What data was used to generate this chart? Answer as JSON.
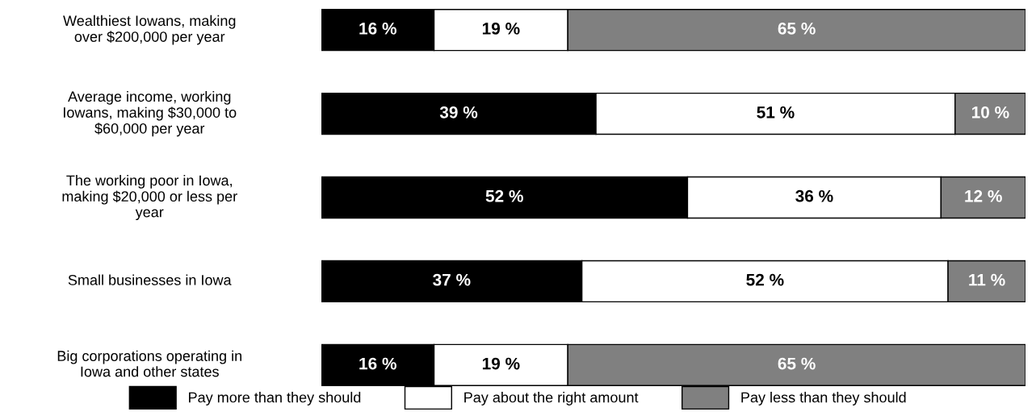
{
  "chart_data": {
    "type": "bar",
    "orientation": "horizontal",
    "stacked": true,
    "categories": [
      "Wealthiest Iowans, making\nover $200,000 per year",
      "Average income, working\nIowans, making $30,000 to\n$60,000 per year",
      "The working poor in Iowa,\nmaking $20,000 or less per\nyear",
      "Small businesses in Iowa",
      "Big corporations operating in\nIowa and other states"
    ],
    "series": [
      {
        "name": "Pay more than they should",
        "color": "#000000",
        "values": [
          16,
          39,
          52,
          37,
          16
        ],
        "value_labels": [
          "16 %",
          "39 %",
          "52 %",
          "37 %",
          "16 %"
        ]
      },
      {
        "name": "Pay about the right amount",
        "color": "#ffffff",
        "values": [
          19,
          51,
          36,
          52,
          19
        ],
        "value_labels": [
          "19 %",
          "51 %",
          "36 %",
          "52 %",
          "19 %"
        ]
      },
      {
        "name": "Pay less than they should",
        "color": "#808080",
        "values": [
          65,
          10,
          12,
          11,
          65
        ],
        "value_labels": [
          "65 %",
          "10 %",
          "12 %",
          "11 %",
          "65 %"
        ]
      }
    ],
    "xlim": [
      0,
      100
    ],
    "legend": "bottom"
  }
}
